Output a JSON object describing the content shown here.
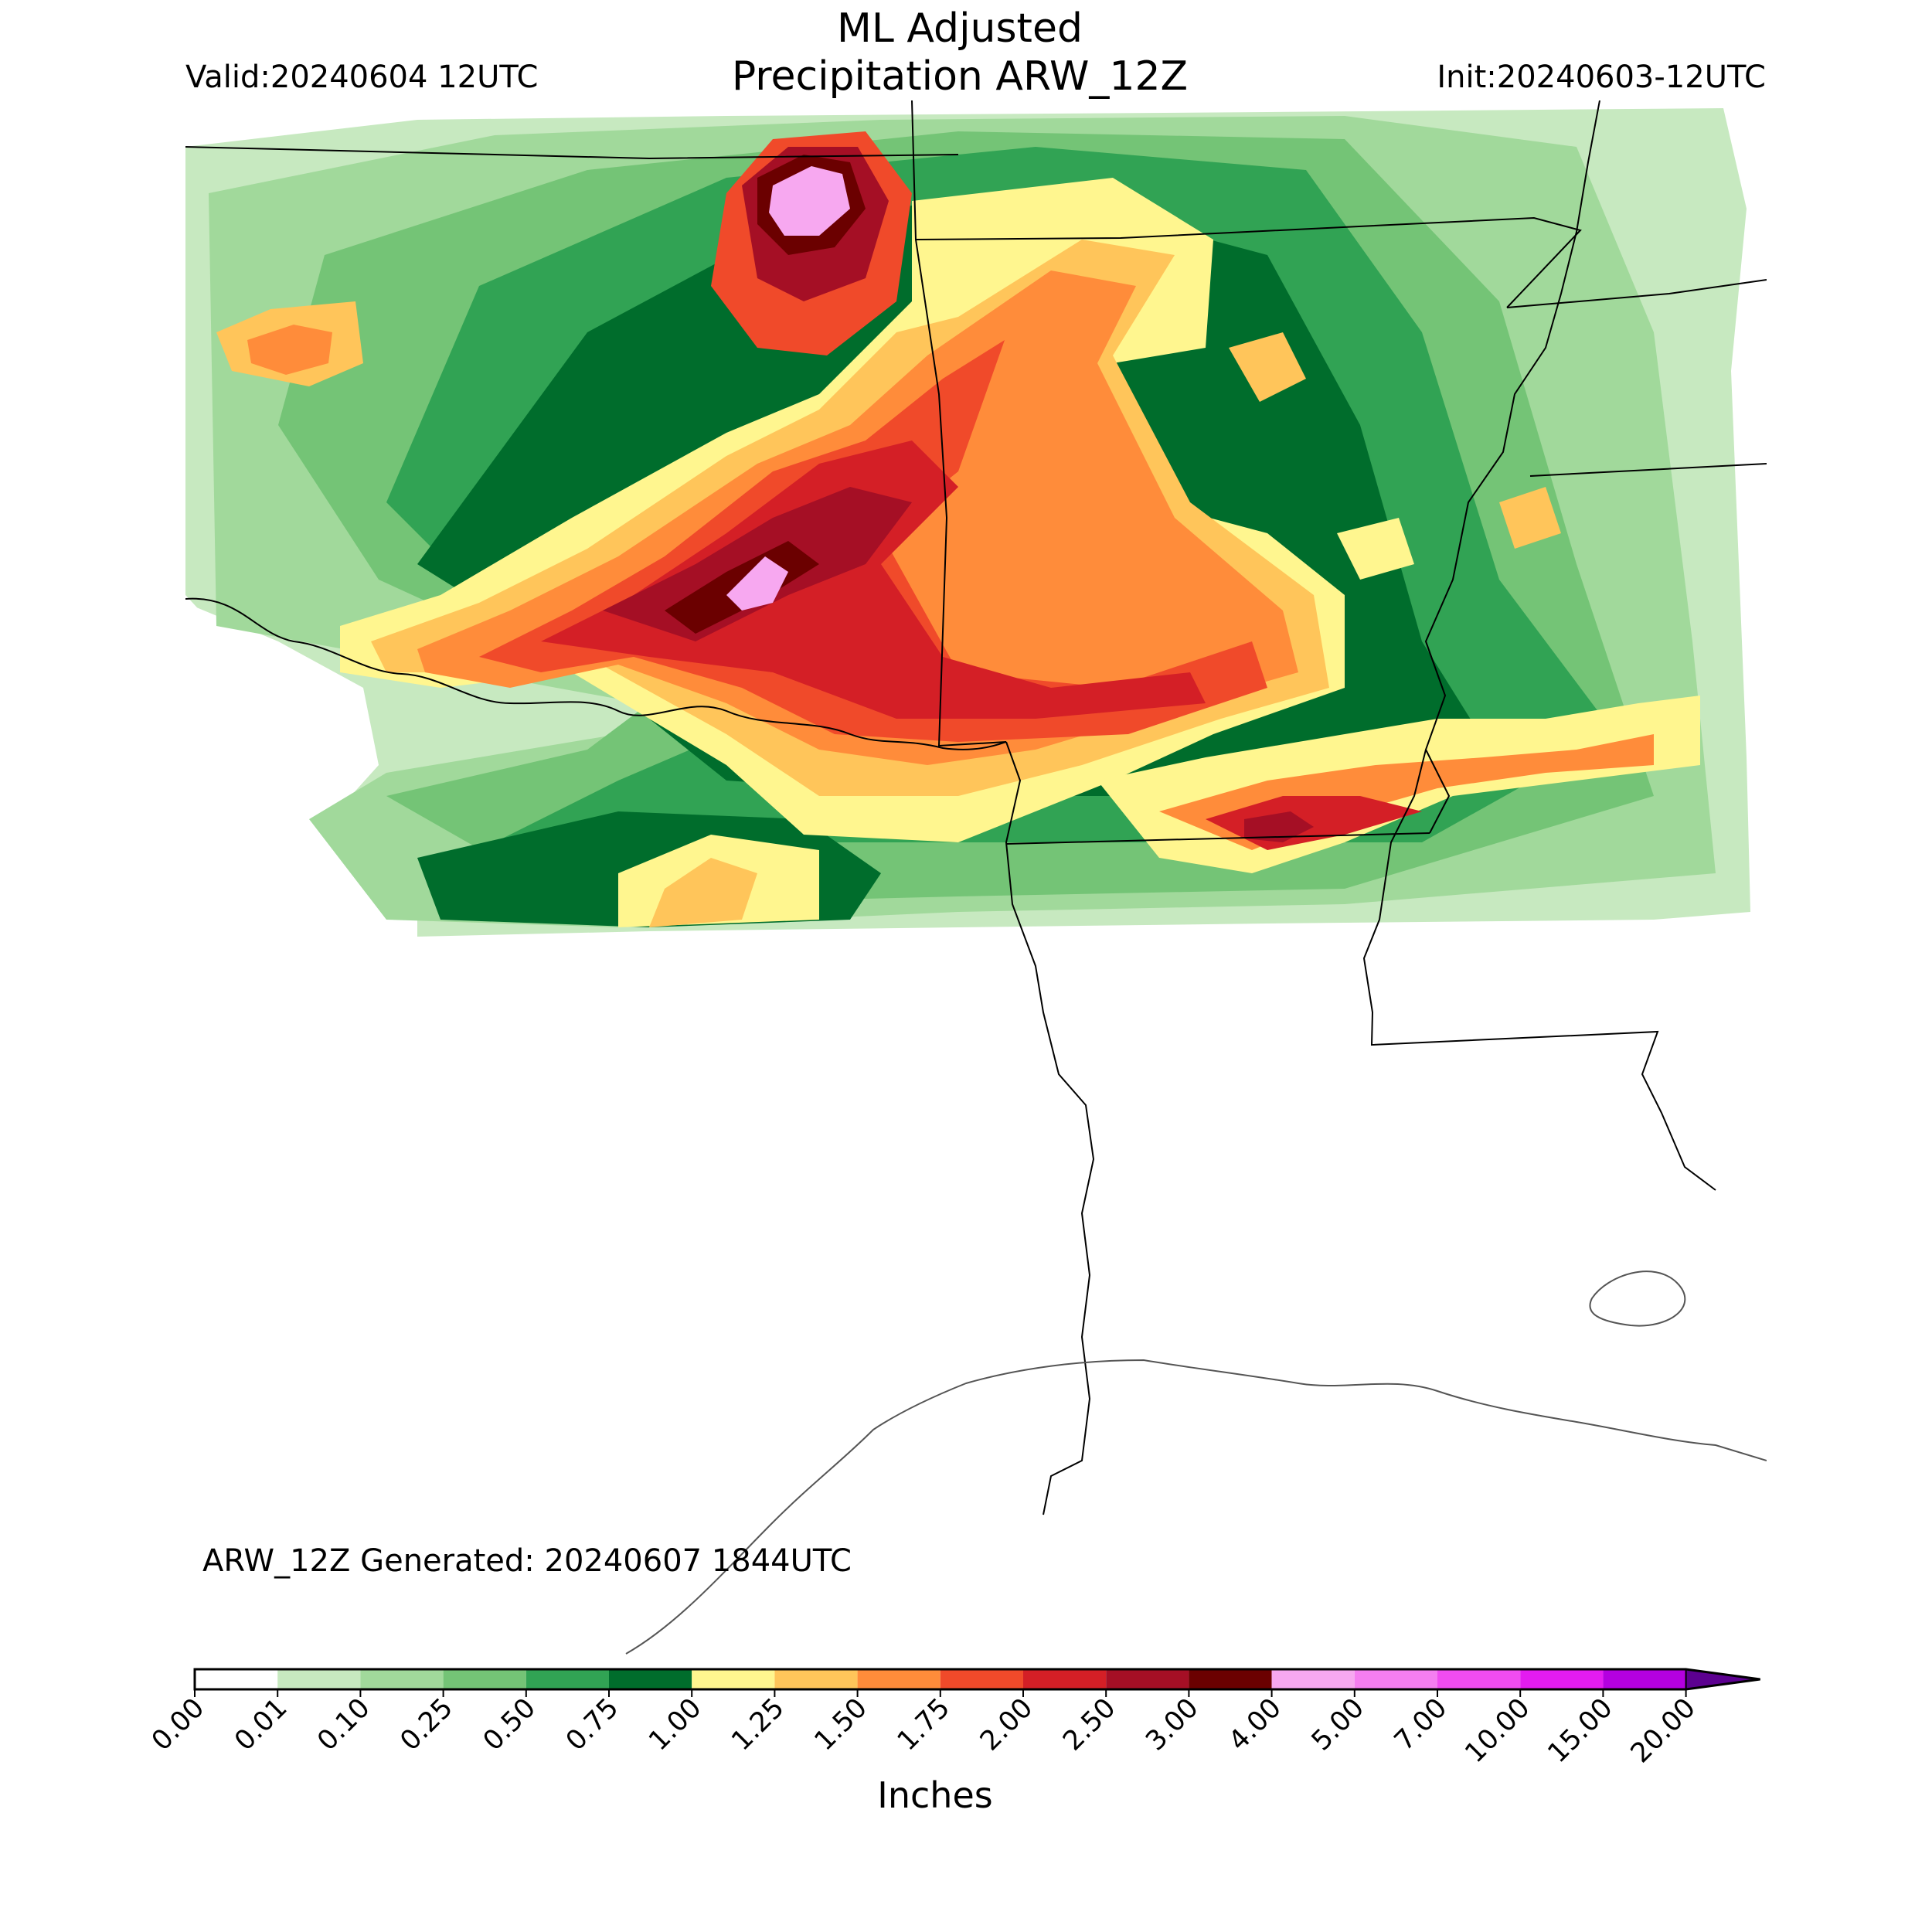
{
  "header": {
    "title_line1": "ML Adjusted",
    "title_line2": "Precipitation ARW_12Z",
    "valid": "Valid:20240604 12UTC",
    "init": "Init:20240603-12UTC"
  },
  "map": {
    "generated": "ARW_12Z Generated: 20240607 1844UTC",
    "precip_colors": {
      "lightest": "#c7e9c0",
      "light": "#a1d99b",
      "mid": "#74c476",
      "green": "#31a354",
      "dark_green": "#006d2c",
      "yellow": "#fff68f",
      "gold": "#ffc55a",
      "orange": "#ff8c3a",
      "red_orange": "#f04a2a",
      "red": "#d41f26",
      "crimson": "#a50f25",
      "maroon": "#6b0000",
      "pink": "#f7a8f0"
    }
  },
  "colorbar": {
    "label": "Inches",
    "ticks": [
      "0.00",
      "0.01",
      "0.10",
      "0.25",
      "0.50",
      "0.75",
      "1.00",
      "1.25",
      "1.50",
      "1.75",
      "2.00",
      "2.50",
      "3.00",
      "4.00",
      "5.00",
      "7.00",
      "10.00",
      "15.00",
      "20.00"
    ],
    "colors": [
      "#ffffff",
      "#c7e9c0",
      "#a1d99b",
      "#74c476",
      "#31a354",
      "#006d2c",
      "#fff68f",
      "#ffc55a",
      "#ff8c3a",
      "#f04a2a",
      "#d41f26",
      "#a50f25",
      "#6b0000",
      "#f7a8f0",
      "#f57ef0",
      "#f04cf0",
      "#e31cf0",
      "#b400e0"
    ],
    "extend_color": "#5c0090"
  }
}
